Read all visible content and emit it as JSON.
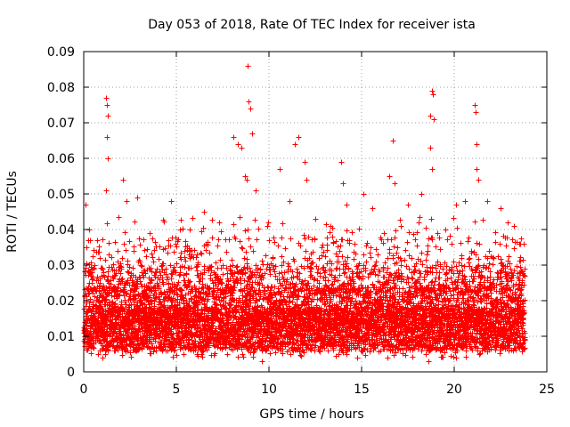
{
  "chart_data": {
    "type": "scatter",
    "title": "Day 053 of 2018, Rate Of TEC Index for receiver ista",
    "xlabel": "GPS time / hours",
    "ylabel": "ROTI / TECUs",
    "xlim": [
      0,
      25
    ],
    "ylim": [
      0,
      0.09
    ],
    "x_ticks": [
      0,
      5,
      10,
      15,
      20,
      25
    ],
    "x_tick_labels": [
      "0",
      "5",
      "10",
      "15",
      "20",
      "25"
    ],
    "y_ticks": [
      0,
      0.01,
      0.02,
      0.03,
      0.04,
      0.05,
      0.06,
      0.07,
      0.08,
      0.09
    ],
    "y_tick_labels": [
      "0",
      "0.01",
      "0.02",
      "0.03",
      "0.04",
      "0.05",
      "0.06",
      "0.07",
      "0.08",
      "0.09"
    ],
    "grid": true,
    "marker": "+",
    "marker_color": "#ff0000",
    "data_x_range": [
      0,
      23.8
    ],
    "series": [
      {
        "name": "ista",
        "points": [
          [
            1.2,
            0.077
          ],
          [
            1.25,
            0.075
          ],
          [
            1.3,
            0.072
          ],
          [
            1.25,
            0.066
          ],
          [
            1.3,
            0.06
          ],
          [
            1.2,
            0.051
          ],
          [
            2.1,
            0.054
          ],
          [
            2.3,
            0.048
          ],
          [
            2.9,
            0.049
          ],
          [
            4.7,
            0.048
          ],
          [
            6.5,
            0.045
          ],
          [
            8.1,
            0.066
          ],
          [
            8.3,
            0.064
          ],
          [
            8.5,
            0.063
          ],
          [
            8.7,
            0.055
          ],
          [
            8.8,
            0.054
          ],
          [
            8.85,
            0.086
          ],
          [
            8.9,
            0.076
          ],
          [
            9.0,
            0.074
          ],
          [
            9.1,
            0.067
          ],
          [
            9.3,
            0.051
          ],
          [
            10.6,
            0.057
          ],
          [
            11.1,
            0.048
          ],
          [
            11.4,
            0.064
          ],
          [
            11.6,
            0.066
          ],
          [
            11.9,
            0.059
          ],
          [
            12.0,
            0.054
          ],
          [
            13.9,
            0.059
          ],
          [
            14.0,
            0.053
          ],
          [
            14.2,
            0.047
          ],
          [
            15.1,
            0.05
          ],
          [
            15.6,
            0.046
          ],
          [
            16.5,
            0.055
          ],
          [
            16.7,
            0.065
          ],
          [
            16.8,
            0.053
          ],
          [
            17.5,
            0.047
          ],
          [
            18.2,
            0.05
          ],
          [
            18.7,
            0.072
          ],
          [
            18.8,
            0.079
          ],
          [
            18.85,
            0.078
          ],
          [
            18.9,
            0.071
          ],
          [
            18.7,
            0.063
          ],
          [
            18.8,
            0.057
          ],
          [
            20.1,
            0.047
          ],
          [
            20.6,
            0.048
          ],
          [
            21.1,
            0.075
          ],
          [
            21.15,
            0.073
          ],
          [
            21.2,
            0.064
          ],
          [
            21.2,
            0.057
          ],
          [
            21.3,
            0.054
          ],
          [
            21.8,
            0.048
          ],
          [
            22.5,
            0.046
          ],
          [
            23.2,
            0.041
          ],
          [
            0.1,
            0.047
          ],
          [
            0.3,
            0.04
          ],
          [
            5.2,
            0.04
          ],
          [
            7.3,
            0.042
          ],
          [
            12.5,
            0.043
          ],
          [
            13.3,
            0.041
          ],
          [
            17.1,
            0.041
          ],
          [
            19.5,
            0.04
          ],
          [
            22.9,
            0.042
          ],
          [
            9.6,
            0.003
          ],
          [
            18.6,
            0.003
          ]
        ]
      }
    ]
  }
}
